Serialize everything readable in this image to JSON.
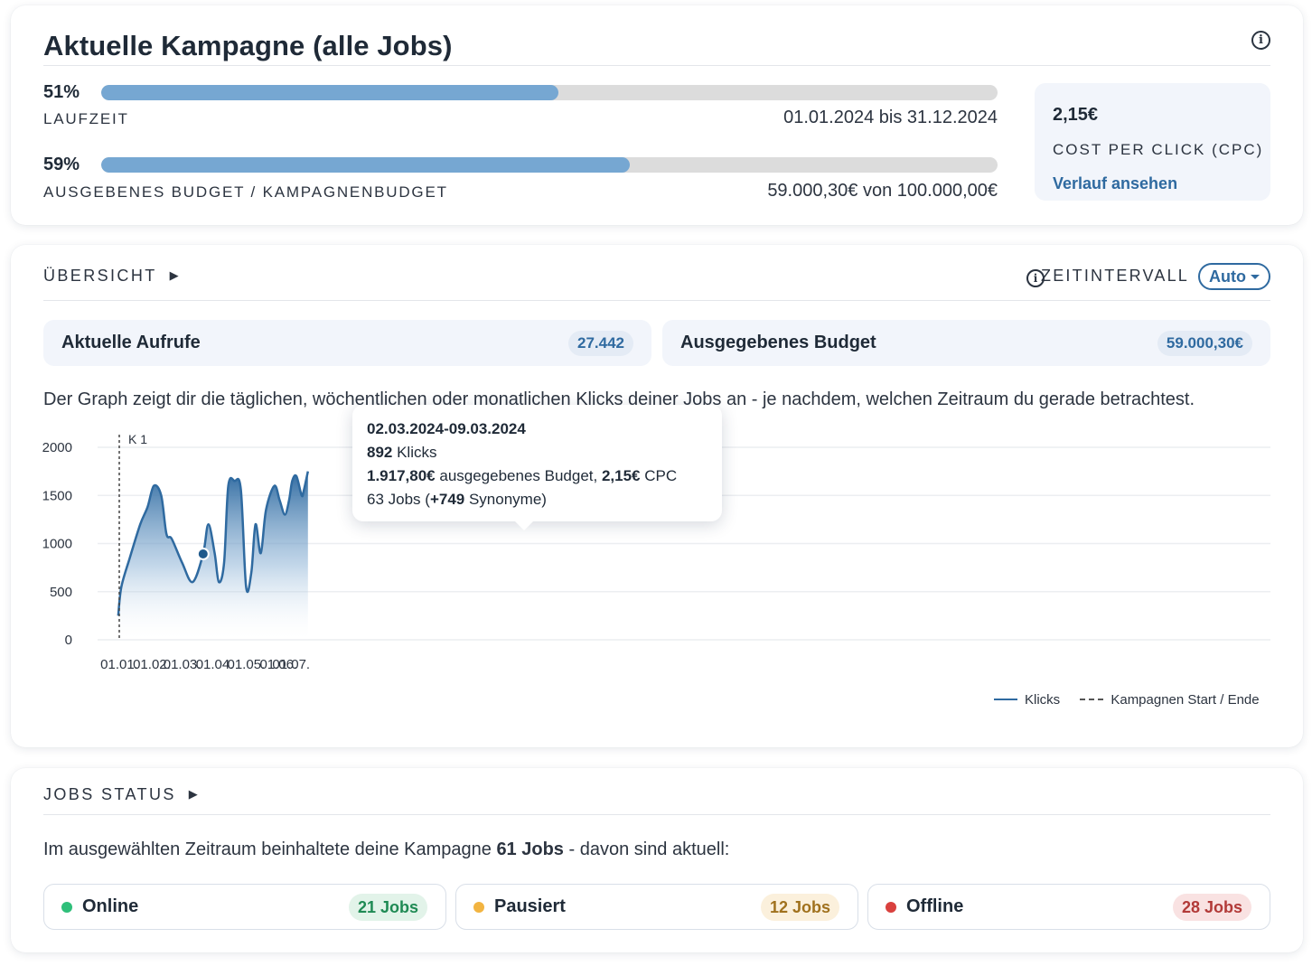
{
  "campaign": {
    "title": "Aktuelle Kampagne (alle Jobs)",
    "info_icon": "info-icon",
    "runtime": {
      "percent_label": "51%",
      "progress": 0.51,
      "label": "LAUFZEIT",
      "range": "01.01.2024 bis 31.12.2024"
    },
    "budget": {
      "percent_label": "59%",
      "progress": 0.59,
      "label": "AUSGEBENES BUDGET / KAMPAGNENBUDGET",
      "range": "59.000,30€ von 100.000,00€"
    },
    "cpc": {
      "value": "2,15€",
      "label": "COST PER CLICK (CPC)",
      "link": "Verlauf ansehen"
    },
    "bar_color": "#76a7d2"
  },
  "overview": {
    "heading": "ÜBERSICHT",
    "interval_label": "ZEITINTERVALL",
    "interval_value": "Auto",
    "stats": [
      {
        "label": "Aktuelle Aufrufe",
        "value": "27.442"
      },
      {
        "label": "Ausgegebenes Budget",
        "value": "59.000,30€"
      }
    ],
    "description": "Der Graph zeigt dir die täglichen, wöchentlichen oder monatlichen Klicks deiner Jobs an - je nachdem, welchen Zeitraum du gerade betrachtest.",
    "tooltip": {
      "date": "02.03.2024-09.03.2024",
      "clicks_value": "892",
      "clicks_unit": " Klicks",
      "budget_value": "1.917,80€",
      "budget_text": " ausgegebenes Budget, ",
      "cpc_value": "2,15€",
      "cpc_unit": " CPC",
      "jobs_value": "63",
      "jobs_text": " Jobs (",
      "synonyms_value": "+749",
      "synonyms_text": " Synonyme)"
    },
    "legend": {
      "clicks": "Klicks",
      "campaign": "Kampagnen Start / Ende"
    }
  },
  "chart_data": {
    "type": "area",
    "ylim": [
      0,
      2000
    ],
    "y_ticks": [
      "0",
      "500",
      "1000",
      "1500",
      "2000"
    ],
    "x_ticks": [
      "01.01.",
      "01.02.",
      "01.03.",
      "01.04.",
      "01.05.",
      "01.06.",
      "01.07."
    ],
    "marker_label": "K 1",
    "line_color": "#2f6aa0",
    "series": [
      {
        "name": "Klicks",
        "x_days": [
          -1,
          2,
          10,
          20,
          27,
          33,
          40,
          45,
          50,
          60,
          70,
          80,
          85,
          91,
          95,
          100,
          104,
          110,
          116,
          121,
          126,
          130,
          135,
          140,
          148,
          153,
          158,
          162,
          165,
          169,
          174,
          176,
          180
        ],
        "values": [
          250,
          550,
          850,
          1200,
          1380,
          1600,
          1500,
          1100,
          1050,
          800,
          600,
          892,
          1200,
          900,
          600,
          800,
          1600,
          1650,
          1560,
          550,
          700,
          1200,
          900,
          1350,
          1600,
          1450,
          1300,
          1450,
          1650,
          1700,
          1500,
          1550,
          1750
        ]
      }
    ],
    "highlight": {
      "date": "02.03.2024-09.03.2024",
      "value": 892
    }
  },
  "jobs": {
    "heading": "JOBS STATUS",
    "summary_prefix": "Im ausgewählten Zeitraum beinhaltete deine Kampagne ",
    "summary_bold": "61 Jobs",
    "summary_suffix": " - davon sind aktuell:",
    "statuses": [
      {
        "label": "Online",
        "count": "21 Jobs",
        "dot": "#2fbf7a",
        "badge_bg": "#e2f3e9",
        "badge_fg": "#1f8a54"
      },
      {
        "label": "Pausiert",
        "count": "12 Jobs",
        "dot": "#f2b441",
        "badge_bg": "#fbf0dc",
        "badge_fg": "#a0711d"
      },
      {
        "label": "Offline",
        "count": "28 Jobs",
        "dot": "#d9413e",
        "badge_bg": "#f9e2e2",
        "badge_fg": "#b23a38"
      }
    ]
  }
}
